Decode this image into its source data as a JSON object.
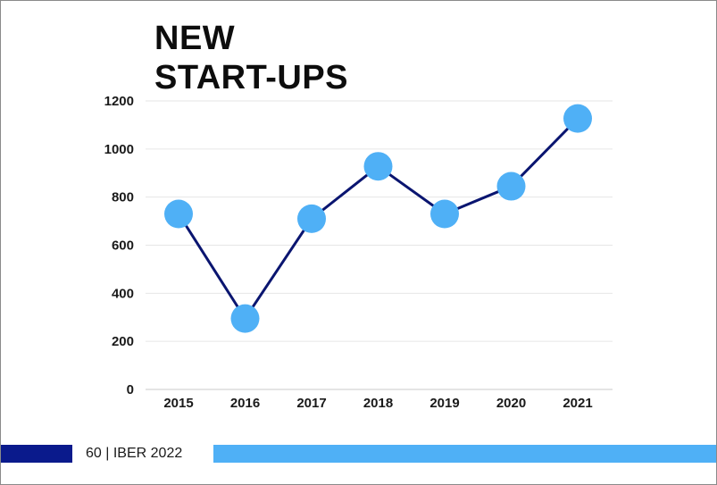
{
  "title_lines": [
    "NEW",
    "START-UPS"
  ],
  "footer": {
    "page": "60",
    "separator": "|",
    "publication": "IBER 2022"
  },
  "colors": {
    "line": "#0a1570",
    "marker": "#4fb0f6",
    "grid": "#e6e6e6",
    "footer_dark": "#0a1a8c",
    "footer_light": "#4fb0f6"
  },
  "chart_data": {
    "type": "line",
    "categories": [
      "2015",
      "2016",
      "2017",
      "2018",
      "2019",
      "2020",
      "2021"
    ],
    "values": [
      730,
      295,
      710,
      928,
      730,
      845,
      1127
    ],
    "ylim": [
      0,
      1200
    ],
    "yticks": [
      0,
      200,
      400,
      600,
      800,
      1000,
      1200
    ],
    "grid": true,
    "legend": "none"
  }
}
